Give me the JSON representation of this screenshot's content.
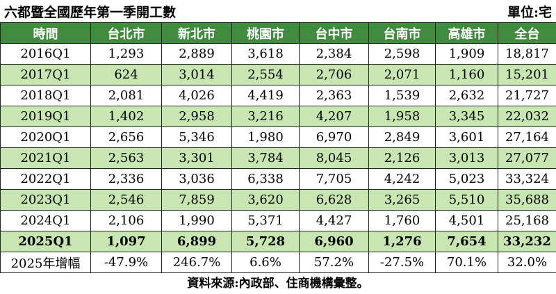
{
  "title": "六都暨全國歷年第一季開工數",
  "unit": "單位:宅",
  "table": {
    "header": [
      "時間",
      "台北市",
      "新北市",
      "桃園市",
      "台中市",
      "台南市",
      "高雄市",
      "全台"
    ],
    "rows": [
      [
        "2016Q1",
        "1,293",
        "2,889",
        "3,618",
        "2,384",
        "2,598",
        "1,909",
        "18,817"
      ],
      [
        "2017Q1",
        "624",
        "3,014",
        "2,554",
        "2,706",
        "2,071",
        "1,160",
        "15,201"
      ],
      [
        "2018Q1",
        "2,081",
        "4,026",
        "4,419",
        "2,363",
        "1,539",
        "2,632",
        "21,727"
      ],
      [
        "2019Q1",
        "1,402",
        "2,958",
        "3,216",
        "4,207",
        "1,958",
        "3,345",
        "22,032"
      ],
      [
        "2020Q1",
        "2,656",
        "5,346",
        "1,980",
        "6,970",
        "2,849",
        "3,601",
        "27,164"
      ],
      [
        "2021Q1",
        "2,563",
        "3,301",
        "3,784",
        "8,045",
        "2,126",
        "3,013",
        "27,077"
      ],
      [
        "2022Q1",
        "2,336",
        "3,036",
        "6,338",
        "7,705",
        "4,242",
        "5,023",
        "33,324"
      ],
      [
        "2023Q1",
        "2,546",
        "7,859",
        "3,620",
        "6,628",
        "3,265",
        "5,510",
        "35,688"
      ],
      [
        "2024Q1",
        "2,106",
        "1,990",
        "5,371",
        "4,427",
        "1,760",
        "4,501",
        "25,168"
      ],
      [
        "2025Q1",
        "1,097",
        "6,899",
        "5,728",
        "6,960",
        "1,276",
        "7,654",
        "33,232"
      ],
      [
        "2025年增幅",
        "-47.9%",
        "246.7%",
        "6.6%",
        "57.2%",
        "-27.5%",
        "70.1%",
        "32.0%"
      ]
    ]
  },
  "source": "資料來源:內政部、住商機構彙整。"
}
